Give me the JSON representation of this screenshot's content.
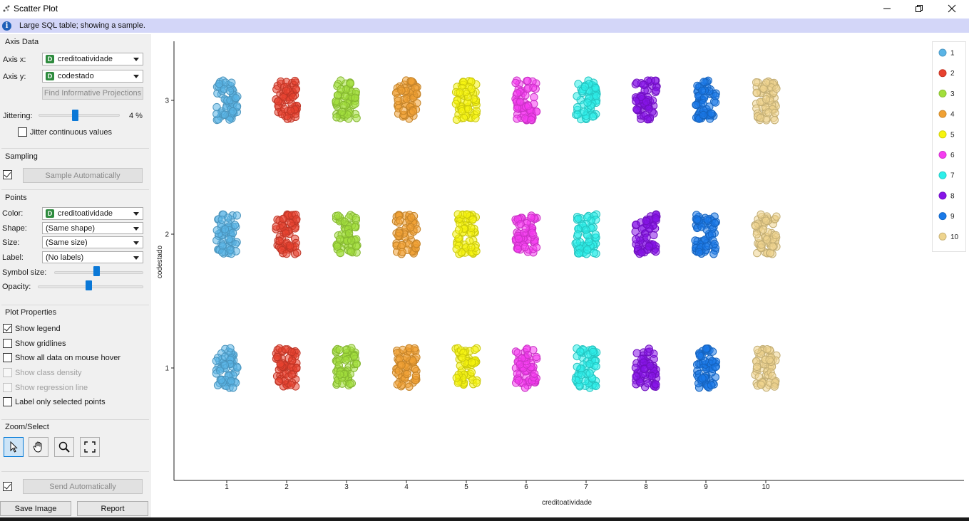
{
  "window": {
    "title": "Scatter Plot"
  },
  "info": {
    "message": "Large SQL table; showing a sample."
  },
  "axis_data": {
    "title": "Axis Data",
    "axis_x_label": "Axis x:",
    "axis_x_value": "creditoatividade",
    "axis_y_label": "Axis y:",
    "axis_y_value": "codestado",
    "find_projections_label": "Find Informative Projections",
    "jittering_label": "Jittering:",
    "jittering_value": "4 %",
    "jittering_level": 0.45,
    "jitter_continuous_label": "Jitter continuous values"
  },
  "sampling": {
    "title": "Sampling",
    "sample_auto_label": "Sample Automatically",
    "checked": true
  },
  "points": {
    "title": "Points",
    "color_label": "Color:",
    "color_value": "creditoatividade",
    "shape_label": "Shape:",
    "shape_value": "(Same shape)",
    "size_label": "Size:",
    "size_value": "(Same size)",
    "label_label": "Label:",
    "label_value": "(No labels)",
    "symbol_size_label": "Symbol size:",
    "symbol_size_level": 0.47,
    "opacity_label": "Opacity:",
    "opacity_level": 0.48
  },
  "plot_properties": {
    "title": "Plot Properties",
    "show_legend": "Show legend",
    "show_gridlines": "Show gridlines",
    "show_all_data": "Show all data on mouse hover",
    "show_class_density": "Show class density",
    "show_regression": "Show regression line",
    "label_selected": "Label only selected points"
  },
  "zoom_select": {
    "title": "Zoom/Select"
  },
  "send": {
    "label": "Send Automatically",
    "checked": true
  },
  "buttons": {
    "save_image": "Save Image",
    "report": "Report"
  },
  "chart_data": {
    "type": "scatter",
    "xlabel": "creditoatividade",
    "ylabel": "codestado",
    "x_ticks": [
      1,
      2,
      3,
      4,
      5,
      6,
      7,
      8,
      9,
      10
    ],
    "y_ticks": [
      1,
      2,
      3
    ],
    "xlim": [
      0.7,
      10.3
    ],
    "ylim": [
      0.15,
      3.45
    ],
    "grid": false,
    "jitter_percent": 4,
    "legend_position": "top-right",
    "categories": [
      "1",
      "2",
      "3",
      "4",
      "5",
      "6",
      "7",
      "8",
      "9",
      "10"
    ],
    "colors": [
      "#5ab4e6",
      "#e8422f",
      "#a2df3c",
      "#f0a133",
      "#f6f40f",
      "#f53df0",
      "#2defea",
      "#8714e8",
      "#1979e8",
      "#eed48e"
    ],
    "clusters_at": [
      {
        "x": 1,
        "y": [
          1,
          2,
          3
        ]
      },
      {
        "x": 2,
        "y": [
          1,
          2,
          3
        ]
      },
      {
        "x": 3,
        "y": [
          1,
          2,
          3
        ]
      },
      {
        "x": 4,
        "y": [
          1,
          2,
          3
        ]
      },
      {
        "x": 5,
        "y": [
          1,
          2,
          3
        ]
      },
      {
        "x": 6,
        "y": [
          1,
          2,
          3
        ]
      },
      {
        "x": 7,
        "y": [
          1,
          2,
          3
        ]
      },
      {
        "x": 8,
        "y": [
          1,
          2,
          3
        ]
      },
      {
        "x": 9,
        "y": [
          1,
          2,
          3
        ]
      },
      {
        "x": 10,
        "y": [
          1,
          2,
          3
        ]
      }
    ]
  }
}
